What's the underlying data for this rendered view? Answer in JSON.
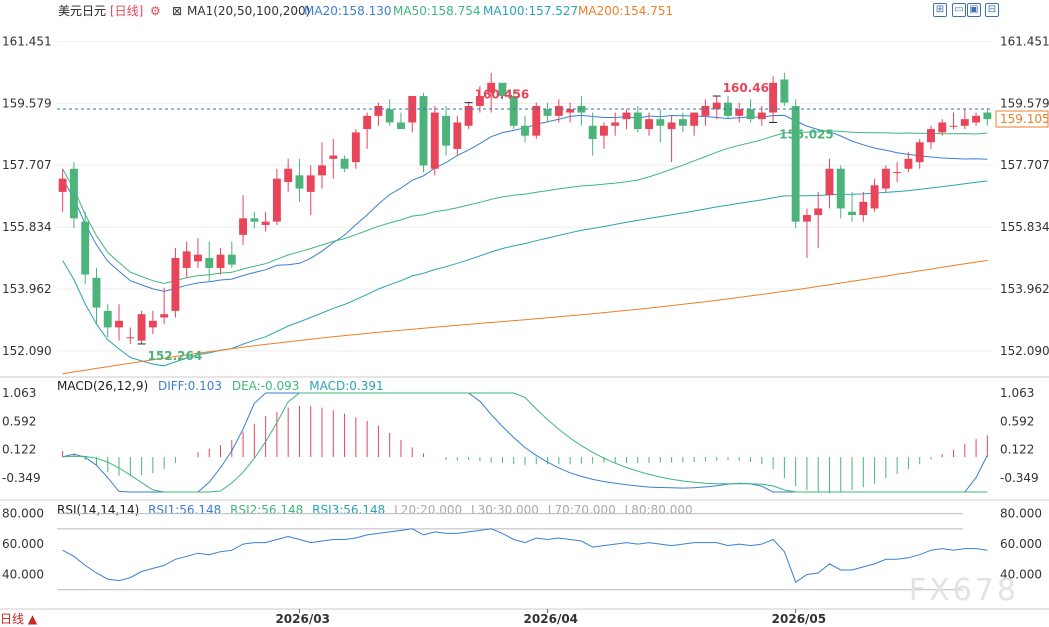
{
  "header": {
    "symbol": "美元日元",
    "period": "[日线]",
    "ma_toggle": "⊠",
    "ma_title": "MA1(20,50,100,200)",
    "ma20": "MA20:158.130",
    "ma50": "MA50:158.754",
    "ma100": "MA100:157.527",
    "ma200": "MA200:154.751"
  },
  "toolbar": {
    "buttons": [
      "⊞",
      "▭",
      "▣",
      "⊟"
    ]
  },
  "macd": {
    "title": "MACD(26,12,9)",
    "diff": "DIFF:0.103",
    "dea": "DEA:-0.093",
    "macd": "MACD:0.391",
    "ticks": [
      "1.063",
      "0.592",
      "0.122",
      "-0.349"
    ]
  },
  "rsi": {
    "title": "RSI(14,14,14)",
    "rsi1": "RSI1:56.148",
    "rsi2": "RSI2:56.148",
    "rsi3": "RSI3:56.148",
    "l20": "L20:20.000",
    "l30": "L30:30.000",
    "l70": "L70:70.000",
    "l80": "L80:80.000",
    "ticks": [
      "80.000",
      "60.000",
      "40.000"
    ]
  },
  "footer": {
    "period_button": "日线 ▲",
    "watermark": "FX678"
  },
  "colors": {
    "up": "#e8445a",
    "down": "#4cb37a",
    "ma20": "#3a7fd5",
    "ma50": "#3db87a",
    "ma100": "#2aa3b5",
    "ma200": "#f07e2a"
  },
  "chart_data": {
    "type": "candlestick",
    "title": "美元日元 [日线]",
    "ylim": [
      151.3,
      162.1
    ],
    "y_ticks": [
      "161.451",
      "159.579",
      "157.707",
      "155.834",
      "153.962",
      "152.090"
    ],
    "x_ticks": [
      "2026/03",
      "2026/04",
      "2026/05"
    ],
    "current_price": "159.105",
    "annotations": [
      {
        "label": "160.456",
        "candle": 36,
        "type": "high"
      },
      {
        "label": "160.467",
        "candle": 58,
        "type": "high"
      },
      {
        "label": "155.025",
        "candle": 63,
        "type": "low"
      },
      {
        "label": "152.264",
        "candle": 7,
        "type": "low"
      }
    ],
    "candles": [
      [
        156.9,
        157.6,
        156.3,
        157.3
      ],
      [
        157.6,
        157.8,
        155.8,
        156.1
      ],
      [
        156.0,
        156.3,
        154.1,
        154.4
      ],
      [
        154.3,
        154.6,
        152.9,
        153.4
      ],
      [
        153.3,
        153.5,
        152.5,
        152.8
      ],
      [
        152.8,
        153.5,
        152.4,
        153.0
      ],
      [
        152.5,
        152.8,
        152.3,
        152.5
      ],
      [
        152.4,
        153.3,
        152.3,
        153.2
      ],
      [
        152.8,
        153.3,
        152.6,
        153.0
      ],
      [
        153.1,
        154.0,
        152.9,
        153.2
      ],
      [
        153.3,
        155.2,
        153.1,
        154.9
      ],
      [
        154.6,
        155.4,
        154.3,
        155.1
      ],
      [
        154.8,
        155.5,
        154.6,
        155.0
      ],
      [
        154.9,
        155.4,
        154.2,
        154.6
      ],
      [
        154.6,
        155.2,
        154.4,
        155.0
      ],
      [
        155.0,
        155.4,
        154.6,
        154.7
      ],
      [
        155.6,
        156.8,
        155.3,
        156.1
      ],
      [
        156.1,
        156.3,
        155.8,
        156.0
      ],
      [
        155.9,
        156.3,
        155.7,
        156.0
      ],
      [
        156.0,
        157.6,
        155.9,
        157.3
      ],
      [
        157.2,
        157.9,
        156.9,
        157.6
      ],
      [
        157.4,
        157.9,
        156.6,
        157.0
      ],
      [
        156.9,
        157.7,
        156.2,
        157.4
      ],
      [
        157.4,
        158.4,
        157.0,
        157.7
      ],
      [
        157.9,
        158.5,
        157.3,
        158.0
      ],
      [
        157.9,
        158.0,
        157.5,
        157.6
      ],
      [
        157.8,
        158.8,
        157.6,
        158.7
      ],
      [
        158.8,
        159.3,
        158.2,
        159.2
      ],
      [
        159.2,
        159.6,
        158.9,
        159.5
      ],
      [
        159.4,
        159.7,
        158.9,
        159.0
      ],
      [
        159.0,
        159.3,
        158.8,
        158.8
      ],
      [
        159.0,
        159.8,
        158.7,
        159.8
      ],
      [
        159.8,
        159.9,
        157.5,
        157.7
      ],
      [
        157.6,
        159.5,
        157.4,
        159.3
      ],
      [
        159.2,
        159.5,
        158.0,
        158.3
      ],
      [
        158.2,
        159.2,
        158.0,
        159.0
      ],
      [
        158.9,
        159.6,
        158.8,
        159.5
      ],
      [
        159.5,
        160.1,
        159.3,
        159.8
      ],
      [
        159.9,
        160.5,
        159.3,
        160.2
      ],
      [
        160.2,
        160.1,
        159.7,
        159.8
      ],
      [
        159.8,
        160.0,
        158.8,
        158.9
      ],
      [
        158.9,
        159.2,
        158.4,
        158.6
      ],
      [
        158.6,
        159.6,
        158.5,
        159.5
      ],
      [
        159.4,
        159.6,
        159.0,
        159.2
      ],
      [
        159.2,
        159.7,
        159.0,
        159.5
      ],
      [
        159.3,
        159.6,
        159.0,
        159.4
      ],
      [
        159.5,
        159.8,
        158.9,
        159.3
      ],
      [
        158.9,
        159.3,
        158.0,
        158.5
      ],
      [
        158.6,
        159.0,
        158.2,
        158.9
      ],
      [
        158.9,
        159.3,
        158.6,
        159.0
      ],
      [
        159.1,
        159.4,
        158.8,
        159.3
      ],
      [
        159.3,
        159.5,
        158.7,
        158.8
      ],
      [
        158.8,
        159.3,
        158.6,
        159.1
      ],
      [
        159.1,
        159.4,
        158.4,
        158.9
      ],
      [
        158.8,
        159.2,
        157.8,
        159.0
      ],
      [
        159.1,
        159.3,
        158.7,
        158.9
      ],
      [
        158.9,
        159.3,
        158.6,
        159.3
      ],
      [
        159.2,
        159.7,
        158.9,
        159.5
      ],
      [
        159.4,
        159.8,
        159.1,
        159.6
      ],
      [
        159.6,
        159.8,
        159.1,
        159.2
      ],
      [
        159.2,
        159.6,
        159.0,
        159.4
      ],
      [
        159.4,
        159.7,
        159.0,
        159.1
      ],
      [
        159.1,
        159.5,
        158.9,
        159.3
      ],
      [
        159.3,
        160.4,
        159.0,
        160.2
      ],
      [
        160.3,
        160.5,
        159.5,
        159.6
      ],
      [
        159.5,
        159.7,
        155.8,
        156.0
      ],
      [
        156.0,
        156.4,
        154.9,
        156.2
      ],
      [
        156.2,
        156.9,
        155.2,
        156.4
      ],
      [
        156.8,
        157.9,
        156.4,
        157.6
      ],
      [
        157.6,
        157.7,
        156.1,
        156.4
      ],
      [
        156.3,
        156.9,
        156.0,
        156.2
      ],
      [
        156.2,
        156.9,
        156.0,
        156.6
      ],
      [
        156.4,
        157.3,
        156.3,
        157.1
      ],
      [
        157.0,
        157.7,
        156.9,
        157.6
      ],
      [
        157.5,
        157.8,
        157.2,
        157.5
      ],
      [
        157.6,
        158.1,
        157.5,
        157.9
      ],
      [
        157.8,
        158.5,
        157.6,
        158.4
      ],
      [
        158.4,
        158.9,
        158.2,
        158.8
      ],
      [
        158.7,
        159.1,
        158.6,
        159.0
      ],
      [
        158.9,
        159.3,
        158.8,
        158.9
      ],
      [
        158.9,
        159.4,
        158.8,
        159.1
      ],
      [
        159.0,
        159.3,
        158.9,
        159.2
      ],
      [
        159.3,
        159.4,
        158.9,
        159.1
      ]
    ],
    "macd_hist": [
      0.1,
      0.05,
      -0.05,
      -0.15,
      -0.25,
      -0.31,
      -0.32,
      -0.3,
      -0.27,
      -0.2,
      -0.1,
      0.0,
      0.08,
      0.14,
      0.2,
      0.28,
      0.42,
      0.55,
      0.68,
      0.75,
      0.82,
      0.85,
      0.85,
      0.82,
      0.78,
      0.72,
      0.66,
      0.6,
      0.52,
      0.4,
      0.28,
      0.16,
      0.06,
      0.0,
      -0.05,
      -0.06,
      -0.05,
      -0.07,
      -0.09,
      -0.1,
      -0.12,
      -0.13,
      -0.12,
      -0.12,
      -0.12,
      -0.12,
      -0.11,
      -0.11,
      -0.1,
      -0.1,
      -0.1,
      -0.1,
      -0.1,
      -0.09,
      -0.09,
      -0.09,
      -0.08,
      -0.07,
      -0.06,
      -0.05,
      -0.06,
      -0.08,
      -0.12,
      -0.2,
      -0.35,
      -0.48,
      -0.55,
      -0.58,
      -0.6,
      -0.58,
      -0.55,
      -0.5,
      -0.44,
      -0.35,
      -0.28,
      -0.2,
      -0.12,
      -0.04,
      0.05,
      0.12,
      0.22,
      0.3,
      0.36,
      0.4
    ],
    "rsi_values": [
      56,
      52,
      46,
      41,
      37,
      36,
      38,
      42,
      44,
      46,
      50,
      52,
      54,
      53,
      55,
      56,
      60,
      61,
      61,
      63,
      65,
      63,
      61,
      62,
      63,
      63,
      64,
      66,
      67,
      68,
      69,
      70,
      66,
      68,
      67,
      67,
      68,
      69,
      70,
      67,
      63,
      61,
      64,
      63,
      64,
      63,
      62,
      58,
      59,
      60,
      61,
      60,
      61,
      60,
      59,
      60,
      61,
      61,
      61,
      59,
      60,
      59,
      60,
      63,
      55,
      35,
      40,
      41,
      47,
      43,
      43,
      45,
      47,
      50,
      50,
      51,
      53,
      56,
      57,
      56,
      57,
      57,
      56
    ]
  }
}
